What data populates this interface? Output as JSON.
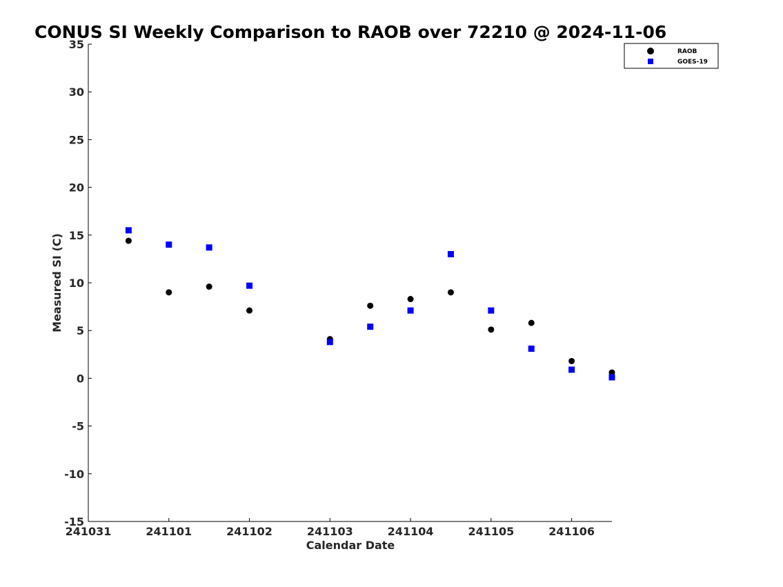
{
  "chart_data": {
    "type": "scatter",
    "title": "CONUS SI Weekly Comparison to RAOB over 72210 @ 2024-11-06",
    "xlabel": "Calendar Date",
    "ylabel": "Measured SI (C)",
    "xlim": [
      0,
      6.5
    ],
    "ylim": [
      -15,
      35
    ],
    "x_ticks": [
      {
        "value": 0,
        "label": "241031"
      },
      {
        "value": 1,
        "label": "241101"
      },
      {
        "value": 2,
        "label": "241102"
      },
      {
        "value": 3,
        "label": "241103"
      },
      {
        "value": 4,
        "label": "241104"
      },
      {
        "value": 5,
        "label": "241105"
      },
      {
        "value": 6,
        "label": "241106"
      }
    ],
    "y_ticks": [
      35,
      30,
      25,
      20,
      15,
      10,
      5,
      0,
      -5,
      -10,
      -15
    ],
    "grid": false,
    "legend_position": "top-right",
    "series": [
      {
        "name": "RAOB",
        "marker": "circle",
        "color": "#000000",
        "points": [
          {
            "x": 0.5,
            "y": 14.4
          },
          {
            "x": 1.0,
            "y": 9.0
          },
          {
            "x": 1.5,
            "y": 9.6
          },
          {
            "x": 2.0,
            "y": 7.1
          },
          {
            "x": 3.0,
            "y": 4.1
          },
          {
            "x": 3.5,
            "y": 7.6
          },
          {
            "x": 4.0,
            "y": 8.3
          },
          {
            "x": 4.5,
            "y": 9.0
          },
          {
            "x": 5.0,
            "y": 5.1
          },
          {
            "x": 5.5,
            "y": 5.8
          },
          {
            "x": 6.0,
            "y": 1.8
          },
          {
            "x": 6.5,
            "y": 0.6
          }
        ]
      },
      {
        "name": "GOES-19",
        "marker": "square",
        "color": "#0000ff",
        "points": [
          {
            "x": 0.5,
            "y": 15.5
          },
          {
            "x": 1.0,
            "y": 14.0
          },
          {
            "x": 1.5,
            "y": 13.7
          },
          {
            "x": 2.0,
            "y": 9.7
          },
          {
            "x": 3.0,
            "y": 3.8
          },
          {
            "x": 3.5,
            "y": 5.4
          },
          {
            "x": 4.0,
            "y": 7.1
          },
          {
            "x": 4.5,
            "y": 13.0
          },
          {
            "x": 5.0,
            "y": 7.1
          },
          {
            "x": 5.5,
            "y": 3.1
          },
          {
            "x": 6.0,
            "y": 0.9
          },
          {
            "x": 6.5,
            "y": 0.1
          }
        ]
      }
    ]
  }
}
